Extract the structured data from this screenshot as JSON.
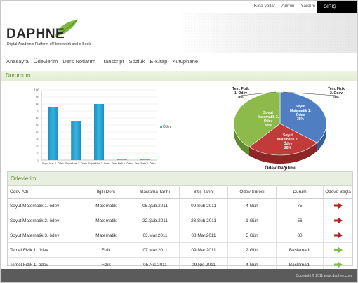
{
  "toplinks": [
    "Kısa yollar",
    "Admin",
    "Yardım"
  ],
  "login_label": "GİRİŞ",
  "logo": {
    "name": "DAPHNE",
    "tagline_line1": "Digital Academic Platform of Homework and e-Book"
  },
  "nav": [
    "Anasayfa",
    "Ödevlerim",
    "Ders Notlarım",
    "Transcript",
    "Sözlük",
    "E-Kitap",
    "Kütüphane"
  ],
  "section_title": "Durumum",
  "colors": {
    "accent_green": "#5e8a2a",
    "bar": "#35b4df",
    "arrow_red": "#b22222",
    "arrow_green": "#7cc143",
    "pie_blue": "#4f7fc2",
    "pie_red": "#c13b3b",
    "pie_green": "#8cbb4b"
  },
  "chart_data": [
    {
      "type": "bar",
      "categories": [
        "Soyut Mat. 1. Ödev",
        "Soyut Mat. 2. Ödev",
        "Soyut Mar. 3. Ödev",
        "Tem. Fizik 1. Ödev",
        "Tem. Fizik 2. Ödev"
      ],
      "values": [
        75,
        56,
        80,
        0,
        0
      ],
      "ylim": [
        0,
        100
      ],
      "yticks": [
        0,
        10,
        20,
        30,
        40,
        50,
        60,
        70,
        80,
        90,
        100
      ],
      "legend": "Ödev",
      "legend_position": "right"
    },
    {
      "type": "pie",
      "title": "Ödev Dağılımı",
      "slices": [
        {
          "label": "Soyut Matematik 1. Ödev",
          "value": 35,
          "display": "35%"
        },
        {
          "label": "Soyut Matematik 2. Ödev",
          "value": 26,
          "display": "26%"
        },
        {
          "label": "Soyut Matematik 3. Ödev",
          "value": 38,
          "display": "38%"
        },
        {
          "label": "Tem. Fizik 1. Ödev",
          "value": 0,
          "display": "0%"
        },
        {
          "label": "Tem. Fizik 2. Ödev",
          "value": 0,
          "display": "0%"
        }
      ]
    }
  ],
  "table": {
    "title": "Ödevlerim",
    "headers": [
      "Ödev Adı",
      "İlgili Ders",
      "Başlama Tarihi",
      "Bitiş Tarihi",
      "Ödev Süresi",
      "Durum",
      "Ödeve Başla"
    ],
    "rows": [
      [
        "Soyut Matematik 1. ödev",
        "Matematik",
        "05.Şub.2011",
        "09.Şub.2011",
        "4 Gün",
        "75",
        "red"
      ],
      [
        "Soyut Matematik 2. ödev",
        "Matematik",
        "22.Şub.2011",
        "23.Şub.2011",
        "1 Gün",
        "56",
        "red"
      ],
      [
        "Soyut Matematik 3. ödev",
        "Matematik",
        "03.Mar.2011",
        "08.Mar.2011",
        "5 Gün",
        "80",
        "red"
      ],
      [
        "Temel Fizik 1. ödev",
        "Fizik",
        "07.Mar.2011",
        "09.Mar.2011",
        "2 Gün",
        "Başlamadı",
        "green"
      ],
      [
        "Temel Fizik 1. ödev",
        "Fizik",
        "05.Nis.2011",
        "09.Nis.2011",
        "4 Gün",
        "Başlamadı",
        "green"
      ]
    ]
  },
  "footer": "Copyright © 2011 www.daphne.com"
}
